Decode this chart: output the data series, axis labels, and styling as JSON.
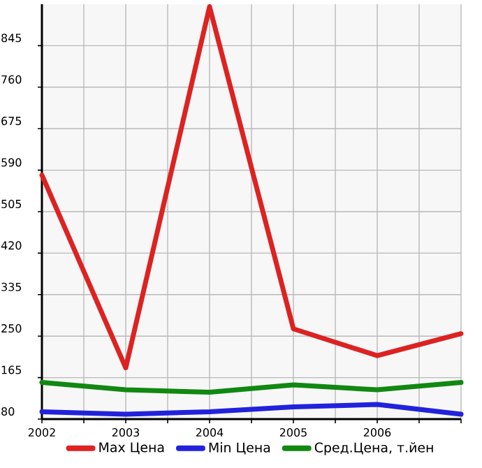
{
  "chart_data": {
    "type": "line",
    "x": [
      2002,
      2003,
      2004,
      2005,
      2006,
      2007
    ],
    "series": [
      {
        "name": "Max Цена",
        "color": "#dd2222",
        "values": [
          580,
          185,
          925,
          265,
          210,
          255
        ]
      },
      {
        "name": "Min Цена",
        "color": "#2222dd",
        "values": [
          95,
          90,
          95,
          105,
          110,
          90
        ]
      },
      {
        "name": "Сред.Цена, т.йен",
        "color": "#118811",
        "values": [
          155,
          140,
          135,
          150,
          140,
          155
        ]
      }
    ],
    "xlim": [
      2002,
      2007
    ],
    "xticks": [
      2002,
      {
        "value": 2002.5,
        "label": null
      },
      2003,
      {
        "value": 2003.5,
        "label": null
      },
      2004,
      {
        "value": 2004.5,
        "label": null
      },
      2005,
      {
        "value": 2005.5,
        "label": null
      },
      2006,
      {
        "value": 2006.5,
        "label": null
      },
      {
        "value": 2007,
        "label": null
      }
    ],
    "ylim": [
      80,
      930
    ],
    "yticks": [
      80,
      165,
      250,
      335,
      420,
      505,
      590,
      675,
      760,
      845
    ],
    "grid": true,
    "legend": "bottom"
  }
}
